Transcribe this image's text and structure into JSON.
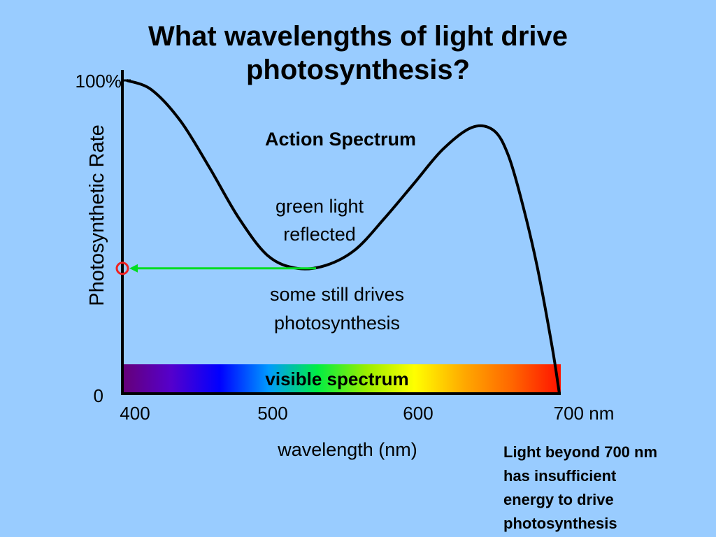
{
  "title": [
    "What wavelengths of light drive",
    "photosynthesis?"
  ],
  "chart_data": {
    "type": "line",
    "xlabel": "wavelength (nm)",
    "ylabel": "Photosynthetic Rate",
    "xlim": [
      400,
      700
    ],
    "ylim": [
      0,
      100
    ],
    "x_ticks": [
      "400",
      "500",
      "600",
      "700 nm"
    ],
    "y_ticks": [
      "0",
      "100%"
    ],
    "series": [
      {
        "name": "Action Spectrum",
        "x": [
          403,
          420,
          440,
          460,
          480,
          500,
          520,
          540,
          560,
          580,
          600,
          620,
          640,
          655,
          665,
          675,
          685,
          695,
          700
        ],
        "y": [
          100,
          97,
          87,
          72,
          56,
          44,
          40,
          41,
          46,
          56,
          67,
          78,
          85,
          84,
          76,
          60,
          40,
          15,
          0
        ]
      }
    ],
    "spectrum_band_label": "visible spectrum",
    "annotations": [
      "green light reflected",
      "some still drives photosynthesis"
    ],
    "marker": {
      "x": 400,
      "y": 40
    }
  },
  "note": [
    "Light beyond 700 nm",
    "has insufficient",
    "energy to  drive",
    "photosynthesis"
  ],
  "colors": {
    "background": "#99ccff",
    "curve": "#000000",
    "arrow": "#00dd22",
    "marker": "#ee2222",
    "spectrum": [
      "#660077",
      "#5500cc",
      "#0000ff",
      "#0099ff",
      "#00ee44",
      "#99ee00",
      "#ffff00",
      "#ffaa00",
      "#ff6600",
      "#ff1100"
    ]
  }
}
